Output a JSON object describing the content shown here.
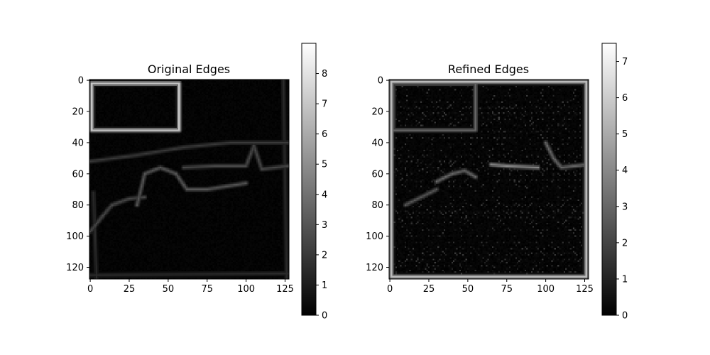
{
  "chart_data": [
    {
      "type": "heatmap",
      "title": "Original Edges",
      "colormap": "gray",
      "x_ticks": [
        "0",
        "25",
        "50",
        "75",
        "100",
        "125"
      ],
      "y_ticks": [
        "0",
        "20",
        "40",
        "60",
        "80",
        "100",
        "120"
      ],
      "xlim": [
        -0.5,
        127.5
      ],
      "ylim": [
        127.5,
        -0.5
      ],
      "colorbar_range": [
        0,
        9
      ],
      "colorbar_ticks": [
        "0",
        "1",
        "2",
        "3",
        "4",
        "5",
        "6",
        "7",
        "8"
      ],
      "features": [
        {
          "kind": "rect_outline",
          "x0": 1,
          "y0": 2,
          "x1": 57,
          "y1": 32,
          "strength": 7
        },
        {
          "kind": "polyline",
          "points": [
            [
              0,
              52
            ],
            [
              30,
              48
            ],
            [
              60,
              43
            ],
            [
              90,
              40
            ],
            [
              127,
              40
            ]
          ],
          "strength": 2
        },
        {
          "kind": "polyline",
          "points": [
            [
              30,
              80
            ],
            [
              35,
              60
            ],
            [
              45,
              56
            ],
            [
              55,
              60
            ],
            [
              62,
              70
            ],
            [
              75,
              70
            ],
            [
              100,
              66
            ]
          ],
          "strength": 3
        },
        {
          "kind": "polyline",
          "points": [
            [
              0,
              97
            ],
            [
              8,
              87
            ],
            [
              14,
              80
            ],
            [
              25,
              76
            ],
            [
              35,
              75
            ]
          ],
          "strength": 2.5
        },
        {
          "kind": "polyline",
          "points": [
            [
              60,
              56
            ],
            [
              80,
              55
            ],
            [
              100,
              55
            ],
            [
              105,
              42
            ],
            [
              110,
              57
            ],
            [
              127,
              55
            ]
          ],
          "strength": 2.5
        },
        {
          "kind": "polyline",
          "points": [
            [
              2,
              72
            ],
            [
              4,
              127
            ]
          ],
          "strength": 1.5
        },
        {
          "kind": "polyline",
          "points": [
            [
              124,
              0
            ],
            [
              126,
              127
            ]
          ],
          "strength": 1.5
        },
        {
          "kind": "polyline",
          "points": [
            [
              0,
              125
            ],
            [
              127,
              124
            ]
          ],
          "strength": 1.5
        }
      ]
    },
    {
      "type": "heatmap",
      "title": "Refined Edges",
      "colormap": "gray",
      "x_ticks": [
        "0",
        "25",
        "50",
        "75",
        "100",
        "125"
      ],
      "y_ticks": [
        "0",
        "20",
        "40",
        "60",
        "80",
        "100",
        "120"
      ],
      "xlim": [
        -0.5,
        127.5
      ],
      "ylim": [
        127.5,
        -0.5
      ],
      "colorbar_range": [
        0,
        7.5
      ],
      "colorbar_ticks": [
        "0",
        "1",
        "2",
        "3",
        "4",
        "5",
        "6",
        "7"
      ],
      "features": [
        {
          "kind": "border",
          "strength": 5.5
        },
        {
          "kind": "rect_outline",
          "x0": 2,
          "y0": 2,
          "x1": 55,
          "y1": 32,
          "strength": 3
        },
        {
          "kind": "polyline",
          "points": [
            [
              65,
              54
            ],
            [
              75,
              55
            ],
            [
              95,
              56
            ]
          ],
          "strength": 4
        },
        {
          "kind": "polyline",
          "points": [
            [
              30,
              65
            ],
            [
              40,
              60
            ],
            [
              48,
              58
            ],
            [
              55,
              62
            ]
          ],
          "strength": 3
        },
        {
          "kind": "polyline",
          "points": [
            [
              10,
              80
            ],
            [
              20,
              75
            ],
            [
              30,
              70
            ]
          ],
          "strength": 2.5
        },
        {
          "kind": "polyline",
          "points": [
            [
              100,
              40
            ],
            [
              105,
              50
            ],
            [
              110,
              56
            ],
            [
              127,
              54
            ]
          ],
          "strength": 3
        }
      ]
    }
  ]
}
